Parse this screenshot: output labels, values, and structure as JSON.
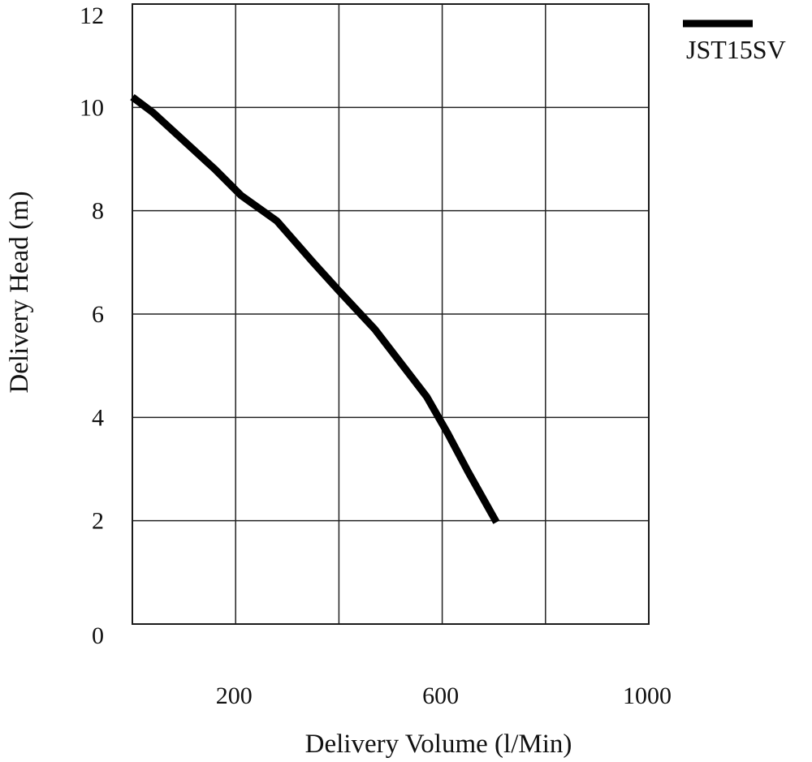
{
  "chart_data": {
    "type": "line",
    "title": "",
    "xlabel": "Delivery Volume (l/Min)",
    "ylabel": "Delivery Head (m)",
    "xlim": [
      0,
      1000
    ],
    "ylim": [
      0,
      12
    ],
    "x_grid_step": 200,
    "y_grid_step": 2,
    "grid": true,
    "x_tick_labels": [
      {
        "value": 200,
        "label": "200"
      },
      {
        "value": 600,
        "label": "600"
      },
      {
        "value": 1000,
        "label": "1000"
      }
    ],
    "y_tick_labels": [
      {
        "value": 0,
        "label": "0"
      },
      {
        "value": 2,
        "label": "2"
      },
      {
        "value": 4,
        "label": "4"
      },
      {
        "value": 6,
        "label": "6"
      },
      {
        "value": 8,
        "label": "8"
      },
      {
        "value": 10,
        "label": "10"
      },
      {
        "value": 12,
        "label": "12"
      }
    ],
    "legend_position": "top-right",
    "series": [
      {
        "name": "JST15SV",
        "color": "#000000",
        "points": [
          {
            "x": 0,
            "y": 10.2
          },
          {
            "x": 40,
            "y": 9.9
          },
          {
            "x": 100,
            "y": 9.35
          },
          {
            "x": 160,
            "y": 8.8
          },
          {
            "x": 210,
            "y": 8.3
          },
          {
            "x": 280,
            "y": 7.8
          },
          {
            "x": 350,
            "y": 7.0
          },
          {
            "x": 400,
            "y": 6.45
          },
          {
            "x": 470,
            "y": 5.7
          },
          {
            "x": 520,
            "y": 5.05
          },
          {
            "x": 570,
            "y": 4.4
          },
          {
            "x": 610,
            "y": 3.7
          },
          {
            "x": 650,
            "y": 2.95
          },
          {
            "x": 705,
            "y": 1.97
          }
        ]
      }
    ]
  }
}
